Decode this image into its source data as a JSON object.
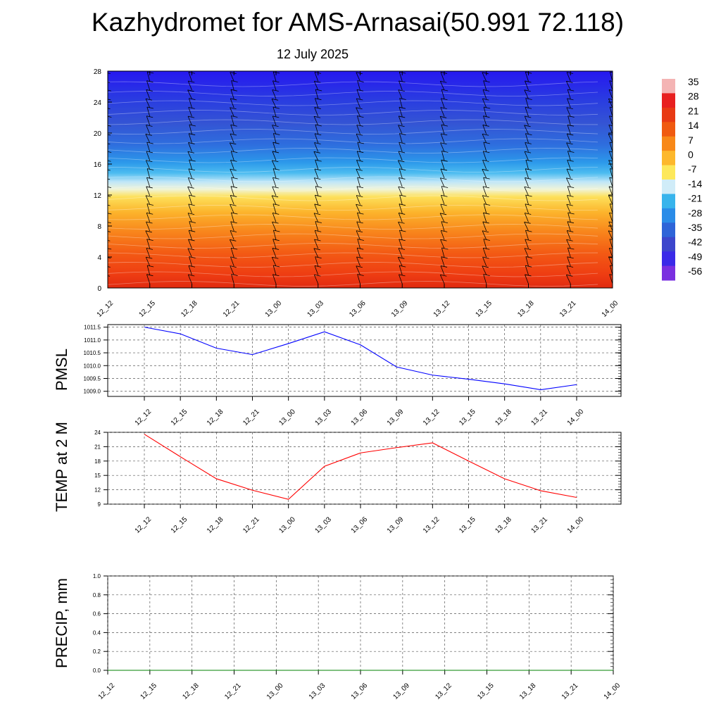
{
  "header": {
    "title": "Kazhydromet for AMS-Arnasai(50.991 72.118)",
    "subtitle": "12 July 2025"
  },
  "chart_data": [
    {
      "type": "heatmap",
      "title": "Kazhydromet for AMS-Arnasai(50.991 72.118)",
      "subtitle": "12 July 2025",
      "x_ticks": [
        "12_12",
        "12_15",
        "12_18",
        "12_21",
        "13_00",
        "13_03",
        "13_06",
        "13_09",
        "13_12",
        "13_15",
        "13_18",
        "13_21",
        "14_00"
      ],
      "y_ticks": [
        0,
        4,
        8,
        12,
        16,
        20,
        24,
        28
      ],
      "ylim": [
        0,
        28
      ],
      "colorbar": {
        "labels": [
          "35",
          "28",
          "21",
          "14",
          "7",
          "0",
          "-7",
          "-14",
          "-21",
          "-28",
          "-35",
          "-42",
          "-49",
          "-56"
        ],
        "colors": [
          "#f4b4b4",
          "#e82020",
          "#e83a14",
          "#f05a10",
          "#f88818",
          "#fdb82c",
          "#fde85a",
          "#d0ecf8",
          "#38b4ec",
          "#2a8ce8",
          "#2e64d8",
          "#3c46cc",
          "#3a2ae8",
          "#7a30e0"
        ]
      },
      "wind_barbs": true
    },
    {
      "type": "line",
      "ylabel": "PMSL",
      "x": [
        "12_12",
        "12_15",
        "12_18",
        "12_21",
        "13_00",
        "13_03",
        "13_06",
        "13_09",
        "13_12",
        "13_15",
        "13_18",
        "13_21",
        "14_00"
      ],
      "y_ticks": [
        "1009.0",
        "1009.5",
        "1010.0",
        "1010.5",
        "1011.0",
        "1011.5"
      ],
      "ylim": [
        1008.8,
        1011.6
      ],
      "series": [
        {
          "values": [
            1011.5,
            1011.24,
            1010.68,
            1010.43,
            1010.86,
            1011.32,
            1010.81,
            1009.95,
            1009.63,
            1009.47,
            1009.29,
            1009.06,
            1009.26
          ],
          "color": "#0000ff"
        }
      ],
      "grid": true
    },
    {
      "type": "line",
      "ylabel": "TEMP at 2 M",
      "x": [
        "12_12",
        "12_15",
        "12_18",
        "12_21",
        "13_00",
        "13_03",
        "13_06",
        "13_09",
        "13_12",
        "13_15",
        "13_18",
        "13_21",
        "14_00"
      ],
      "y_ticks": [
        "9",
        "12",
        "15",
        "18",
        "21",
        "24"
      ],
      "ylim": [
        9,
        24
      ],
      "series": [
        {
          "values": [
            23.6,
            18.9,
            14.3,
            11.9,
            10.0,
            16.9,
            19.7,
            20.8,
            21.8,
            18.0,
            14.3,
            11.8,
            10.4
          ],
          "color": "#ff0000"
        }
      ],
      "grid": true
    },
    {
      "type": "line",
      "ylabel": "PRECIP, mm",
      "x": [
        "12_12",
        "12_15",
        "12_18",
        "12_21",
        "13_00",
        "13_03",
        "13_06",
        "13_09",
        "13_12",
        "13_15",
        "13_18",
        "13_21",
        "14_00"
      ],
      "y_ticks": [
        "0.0",
        "0.2",
        "0.4",
        "0.6",
        "0.8",
        "1.0"
      ],
      "ylim": [
        0,
        1
      ],
      "series": [
        {
          "values": [
            0,
            0,
            0,
            0,
            0,
            0,
            0,
            0,
            0,
            0,
            0,
            0,
            0
          ],
          "color": "#008000"
        }
      ],
      "grid": true
    }
  ]
}
